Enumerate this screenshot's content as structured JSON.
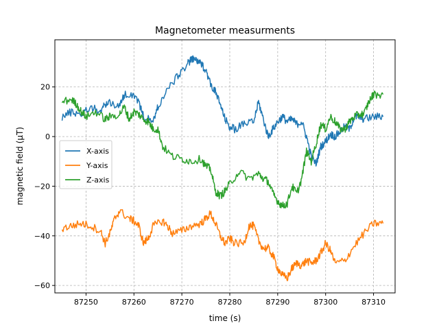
{
  "chart_data": {
    "type": "line",
    "title": "Magnetometer measurments",
    "xlabel": "time (s)",
    "ylabel": "magnetic field (µT)",
    "xlim": [
      87243.5,
      87314.5
    ],
    "ylim": [
      -63,
      39
    ],
    "xticks": [
      87250,
      87260,
      87270,
      87280,
      87290,
      87300,
      87310
    ],
    "xtick_labels": [
      "87250",
      "87260",
      "87270",
      "87280",
      "87290",
      "87300",
      "87310"
    ],
    "yticks": [
      20,
      0,
      -20,
      -40,
      -60
    ],
    "ytick_labels": [
      "20",
      "0",
      "−20",
      "−40",
      "−60"
    ],
    "grid": true,
    "legend": "center-left",
    "series": [
      {
        "name": "X-axis",
        "color": "#1f77b4",
        "x": [
          87245,
          87247,
          87249,
          87251,
          87253,
          87254,
          87255,
          87257,
          87258,
          87260,
          87261,
          87262,
          87264,
          87265,
          87267,
          87269,
          87271,
          87272,
          87273,
          87274,
          87275,
          87276,
          87277,
          87278,
          87279,
          87280,
          87281,
          87283,
          87285,
          87286,
          87287,
          87288,
          87289,
          87290,
          87291,
          87292,
          87293,
          87294,
          87295,
          87296,
          87297,
          87298,
          87299,
          87300,
          87301,
          87302,
          87303,
          87304,
          87305,
          87306,
          87307,
          87308,
          87310,
          87312
        ],
        "y": [
          8,
          10,
          9,
          12,
          10,
          13,
          14,
          12,
          17,
          17,
          14,
          8,
          6,
          12,
          19,
          24,
          29,
          31,
          31,
          29,
          27,
          21,
          18,
          13,
          7,
          4,
          3,
          5,
          6,
          14,
          7,
          0,
          3,
          6,
          8,
          6,
          7,
          5,
          6,
          0,
          -8,
          -11,
          -4,
          -2,
          1,
          0,
          2,
          4,
          3,
          8,
          8,
          7,
          8,
          8
        ]
      },
      {
        "name": "Y-axis",
        "color": "#ff7f0e",
        "x": [
          87245,
          87247,
          87249,
          87251,
          87253,
          87254,
          87255,
          87256,
          87257,
          87259,
          87260,
          87261,
          87262,
          87263,
          87264,
          87266,
          87267,
          87268,
          87270,
          87272,
          87274,
          87275,
          87276,
          87277,
          87278,
          87279,
          87280,
          87281,
          87283,
          87284,
          87285,
          87286,
          87287,
          87288,
          87289,
          87290,
          87291,
          87292,
          87293,
          87294,
          87295,
          87296,
          87297,
          87298,
          87299,
          87300,
          87301,
          87302,
          87304,
          87306,
          87308,
          87310,
          87312
        ],
        "y": [
          -37,
          -36,
          -35,
          -36,
          -38,
          -43,
          -39,
          -33,
          -30,
          -33,
          -34,
          -36,
          -43,
          -41,
          -36,
          -34,
          -36,
          -39,
          -38,
          -36,
          -35,
          -33,
          -31,
          -35,
          -40,
          -43,
          -41,
          -43,
          -43,
          -36,
          -36,
          -42,
          -45,
          -45,
          -48,
          -53,
          -56,
          -57,
          -53,
          -51,
          -52,
          -50,
          -51,
          -50,
          -47,
          -43,
          -46,
          -51,
          -50,
          -44,
          -39,
          -35,
          -35
        ]
      },
      {
        "name": "Z-axis",
        "color": "#2ca02c",
        "x": [
          87245,
          87247,
          87248,
          87249,
          87250,
          87252,
          87254,
          87255,
          87257,
          87258,
          87259,
          87260,
          87261,
          87262,
          87263,
          87264,
          87265,
          87266,
          87268,
          87270,
          87272,
          87274,
          87275,
          87276,
          87277,
          87278,
          87279,
          87280,
          87282,
          87284,
          87286,
          87287,
          87288,
          87289,
          87290,
          87291,
          87292,
          87293,
          87294,
          87295,
          87296,
          87297,
          87298,
          87299,
          87300,
          87301,
          87302,
          87303,
          87304,
          87305,
          87306,
          87307,
          87308,
          87309,
          87310,
          87312
        ],
        "y": [
          14,
          15,
          13,
          10,
          8,
          10,
          7,
          8,
          9,
          12,
          7,
          10,
          9,
          7,
          6,
          3,
          3,
          -4,
          -8,
          -9,
          -10,
          -9,
          -12,
          -13,
          -22,
          -24,
          -22,
          -19,
          -14,
          -17,
          -15,
          -17,
          -18,
          -23,
          -26,
          -28,
          -27,
          -20,
          -23,
          -17,
          -6,
          -10,
          -3,
          5,
          3,
          8,
          6,
          3,
          3,
          6,
          8,
          9,
          9,
          14,
          17,
          17
        ]
      }
    ]
  }
}
